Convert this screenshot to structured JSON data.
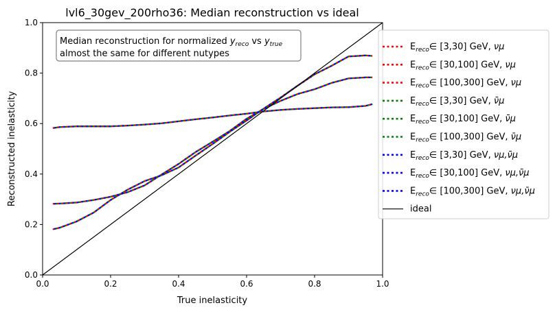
{
  "chart_data": {
    "type": "line",
    "title": "lvl6_30gev_200rho36: Median reconstruction vs ideal",
    "xlabel": "True inelasticity",
    "ylabel": "Reconstructed inelasticity",
    "xlim": [
      0.0,
      1.0
    ],
    "ylim": [
      0.0,
      1.0
    ],
    "xticks": [
      "0.0",
      "0.2",
      "0.4",
      "0.6",
      "0.8",
      "1.0"
    ],
    "yticks": [
      "0.0",
      "0.2",
      "0.4",
      "0.6",
      "0.8",
      "1.0"
    ],
    "grid": false,
    "legend_placement": "right, outside plot",
    "annotation": {
      "line1_text": "Median reconstruction for normalized ",
      "line1_math_a": "y",
      "line1_math_a_sub": "reco",
      "line1_mid": " vs ",
      "line1_math_b": "y",
      "line1_math_b_sub": "true",
      "line2": "almost the same for different nutypes"
    },
    "series": [
      {
        "name_main": "E",
        "name_sub": "reco",
        "name_rest": "∈ [3,30] GeV, ",
        "name_flavor": "νμ",
        "color": "#ff0000",
        "group": "low",
        "x": [
          0.03,
          0.05,
          0.1,
          0.15,
          0.2,
          0.25,
          0.3,
          0.35,
          0.4,
          0.45,
          0.5,
          0.55,
          0.6,
          0.65,
          0.7,
          0.75,
          0.8,
          0.85,
          0.9,
          0.95,
          0.97
        ],
        "y": [
          0.582,
          0.586,
          0.589,
          0.589,
          0.589,
          0.592,
          0.596,
          0.601,
          0.609,
          0.617,
          0.624,
          0.632,
          0.639,
          0.648,
          0.654,
          0.658,
          0.661,
          0.664,
          0.665,
          0.67,
          0.677
        ]
      },
      {
        "name_main": "E",
        "name_sub": "reco",
        "name_rest": "∈ [30,100] GeV, ",
        "name_flavor": "νμ",
        "color": "#ff0000",
        "group": "mid",
        "x": [
          0.03,
          0.05,
          0.1,
          0.15,
          0.2,
          0.25,
          0.3,
          0.35,
          0.4,
          0.45,
          0.5,
          0.55,
          0.6,
          0.65,
          0.7,
          0.75,
          0.8,
          0.85,
          0.9,
          0.95,
          0.97
        ],
        "y": [
          0.282,
          0.283,
          0.287,
          0.297,
          0.31,
          0.328,
          0.355,
          0.398,
          0.44,
          0.487,
          0.528,
          0.57,
          0.619,
          0.658,
          0.69,
          0.717,
          0.736,
          0.761,
          0.779,
          0.783,
          0.783
        ]
      },
      {
        "name_main": "E",
        "name_sub": "reco",
        "name_rest": "∈ [100,300] GeV, ",
        "name_flavor": "νμ",
        "color": "#ff0000",
        "group": "high",
        "x": [
          0.03,
          0.05,
          0.1,
          0.15,
          0.2,
          0.25,
          0.3,
          0.35,
          0.4,
          0.45,
          0.5,
          0.55,
          0.6,
          0.65,
          0.7,
          0.75,
          0.8,
          0.85,
          0.9,
          0.95,
          0.97
        ],
        "y": [
          0.181,
          0.187,
          0.212,
          0.247,
          0.297,
          0.338,
          0.372,
          0.395,
          0.426,
          0.473,
          0.519,
          0.567,
          0.612,
          0.659,
          0.703,
          0.75,
          0.795,
          0.829,
          0.866,
          0.87,
          0.868
        ]
      },
      {
        "name_main": "E",
        "name_sub": "reco",
        "name_rest": "∈ [3,30] GeV, ",
        "name_flavor": "ν̄μ",
        "color": "#008000",
        "group": "low",
        "x": [
          0.03,
          0.05,
          0.1,
          0.15,
          0.2,
          0.25,
          0.3,
          0.35,
          0.4,
          0.45,
          0.5,
          0.55,
          0.6,
          0.65,
          0.7,
          0.75,
          0.8,
          0.85,
          0.9,
          0.95,
          0.97
        ],
        "y": [
          0.582,
          0.586,
          0.589,
          0.589,
          0.589,
          0.592,
          0.596,
          0.601,
          0.609,
          0.617,
          0.624,
          0.632,
          0.639,
          0.648,
          0.654,
          0.658,
          0.661,
          0.664,
          0.665,
          0.67,
          0.677
        ]
      },
      {
        "name_main": "E",
        "name_sub": "reco",
        "name_rest": "∈ [30,100] GeV, ",
        "name_flavor": "ν̄μ",
        "color": "#008000",
        "group": "mid",
        "x": [
          0.03,
          0.05,
          0.1,
          0.15,
          0.2,
          0.25,
          0.3,
          0.35,
          0.4,
          0.45,
          0.5,
          0.55,
          0.6,
          0.65,
          0.7,
          0.75,
          0.8,
          0.85,
          0.9,
          0.95,
          0.97
        ],
        "y": [
          0.282,
          0.283,
          0.287,
          0.297,
          0.31,
          0.328,
          0.355,
          0.398,
          0.44,
          0.487,
          0.528,
          0.57,
          0.619,
          0.658,
          0.69,
          0.717,
          0.736,
          0.761,
          0.779,
          0.783,
          0.783
        ]
      },
      {
        "name_main": "E",
        "name_sub": "reco",
        "name_rest": "∈ [100,300] GeV, ",
        "name_flavor": "ν̄μ",
        "color": "#008000",
        "group": "high",
        "x": [
          0.03,
          0.05,
          0.1,
          0.15,
          0.2,
          0.25,
          0.3,
          0.35,
          0.4,
          0.45,
          0.5,
          0.55,
          0.6,
          0.65,
          0.7,
          0.75,
          0.8,
          0.85,
          0.9,
          0.95,
          0.97
        ],
        "y": [
          0.181,
          0.187,
          0.212,
          0.247,
          0.297,
          0.338,
          0.372,
          0.395,
          0.426,
          0.473,
          0.519,
          0.567,
          0.612,
          0.659,
          0.703,
          0.75,
          0.795,
          0.829,
          0.866,
          0.87,
          0.868
        ]
      },
      {
        "name_main": "E",
        "name_sub": "reco",
        "name_rest": "∈ [3,30] GeV, ",
        "name_flavor": "νμ,ν̄μ",
        "color": "#0000ff",
        "group": "low",
        "x": [
          0.03,
          0.05,
          0.1,
          0.15,
          0.2,
          0.25,
          0.3,
          0.35,
          0.4,
          0.45,
          0.5,
          0.55,
          0.6,
          0.65,
          0.7,
          0.75,
          0.8,
          0.85,
          0.9,
          0.95,
          0.97
        ],
        "y": [
          0.582,
          0.586,
          0.589,
          0.589,
          0.589,
          0.592,
          0.596,
          0.601,
          0.609,
          0.617,
          0.624,
          0.632,
          0.639,
          0.648,
          0.654,
          0.658,
          0.661,
          0.664,
          0.665,
          0.67,
          0.677
        ]
      },
      {
        "name_main": "E",
        "name_sub": "reco",
        "name_rest": "∈ [30,100] GeV, ",
        "name_flavor": "νμ,ν̄μ",
        "color": "#0000ff",
        "group": "mid",
        "x": [
          0.03,
          0.05,
          0.1,
          0.15,
          0.2,
          0.25,
          0.3,
          0.35,
          0.4,
          0.45,
          0.5,
          0.55,
          0.6,
          0.65,
          0.7,
          0.75,
          0.8,
          0.85,
          0.9,
          0.95,
          0.97
        ],
        "y": [
          0.282,
          0.283,
          0.287,
          0.297,
          0.31,
          0.328,
          0.355,
          0.398,
          0.44,
          0.487,
          0.528,
          0.57,
          0.619,
          0.658,
          0.69,
          0.717,
          0.736,
          0.761,
          0.779,
          0.783,
          0.783
        ]
      },
      {
        "name_main": "E",
        "name_sub": "reco",
        "name_rest": "∈ [100,300] GeV, ",
        "name_flavor": "νμ,ν̄μ",
        "color": "#0000ff",
        "group": "high",
        "x": [
          0.03,
          0.05,
          0.1,
          0.15,
          0.2,
          0.25,
          0.3,
          0.35,
          0.4,
          0.45,
          0.5,
          0.55,
          0.6,
          0.65,
          0.7,
          0.75,
          0.8,
          0.85,
          0.9,
          0.95,
          0.97
        ],
        "y": [
          0.181,
          0.187,
          0.212,
          0.247,
          0.297,
          0.338,
          0.372,
          0.395,
          0.426,
          0.473,
          0.519,
          0.567,
          0.612,
          0.659,
          0.703,
          0.75,
          0.795,
          0.829,
          0.866,
          0.87,
          0.868
        ]
      },
      {
        "name_main": "ideal",
        "name_sub": "",
        "name_rest": "",
        "name_flavor": "",
        "color": "#000000",
        "group": "ideal",
        "x": [
          0.0,
          1.0
        ],
        "y": [
          0.0,
          1.0
        ]
      }
    ]
  }
}
